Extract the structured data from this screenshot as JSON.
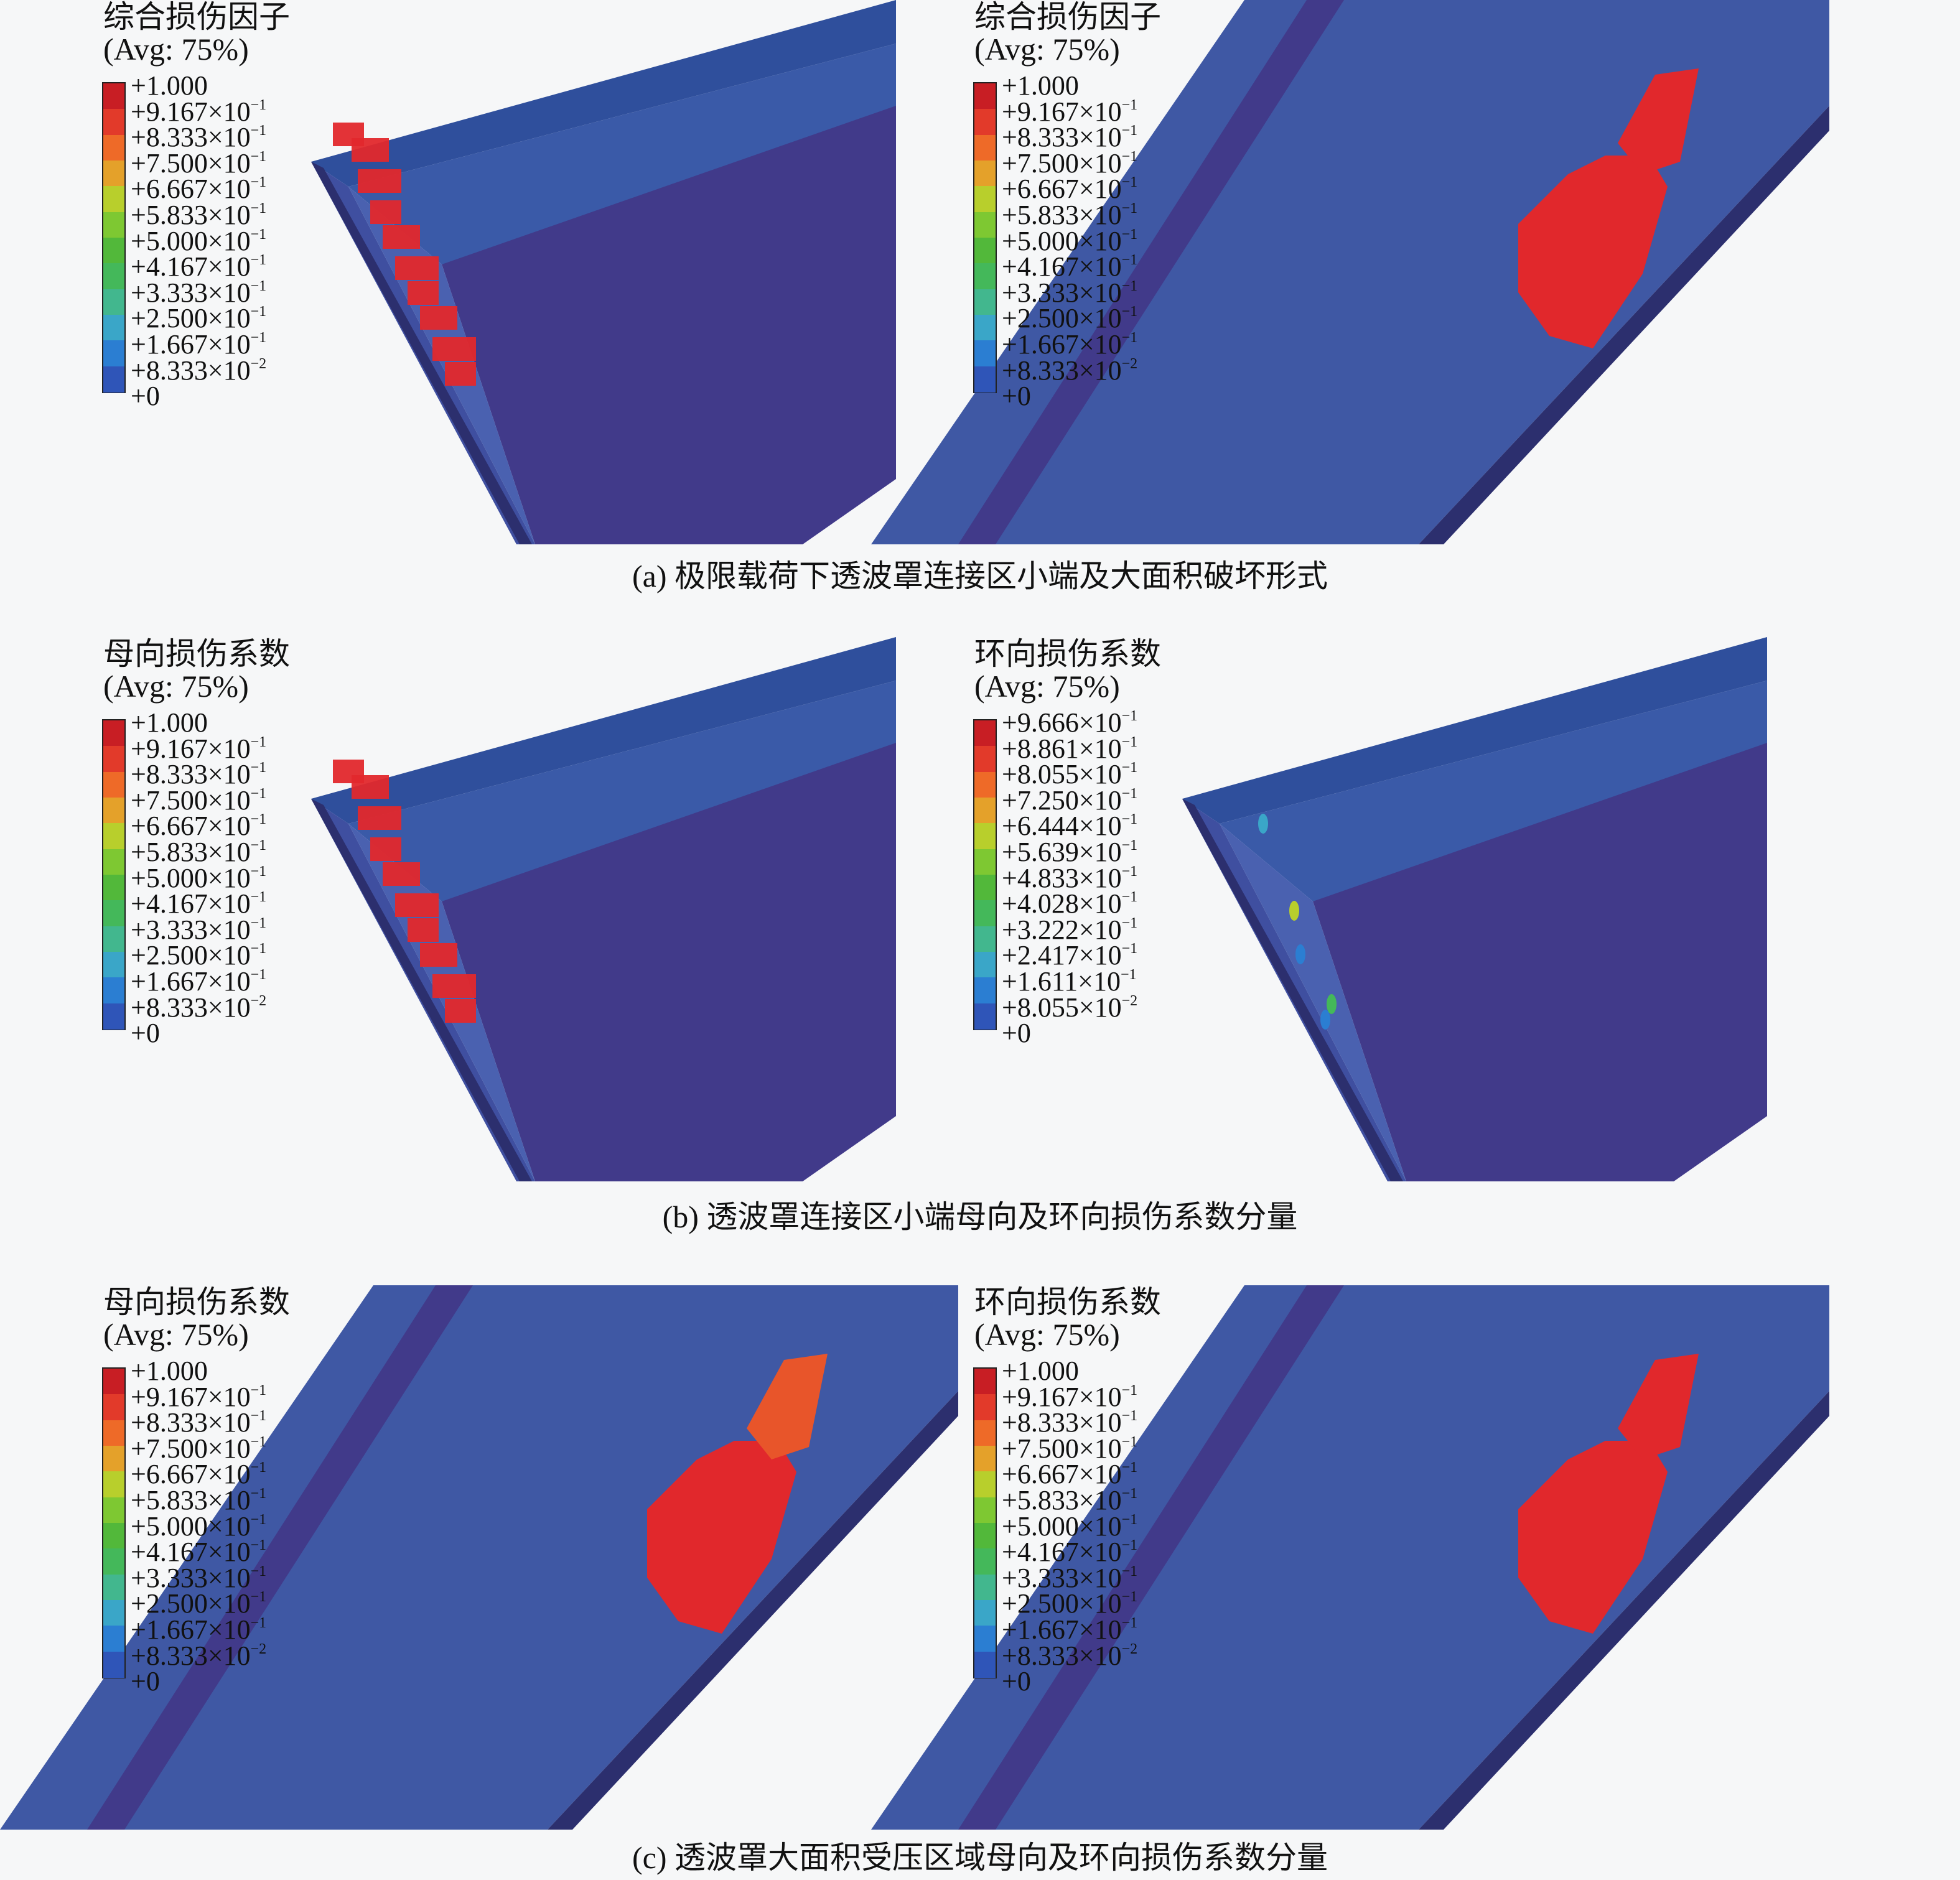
{
  "colorbar_colors": [
    "#3a3fa0",
    "#2f55b8",
    "#2b7ed2",
    "#3aa6c8",
    "#42b78e",
    "#44b85a",
    "#52b83a",
    "#7ec832",
    "#b8cf2c",
    "#e4a12a",
    "#ee6a28",
    "#e23a2a",
    "#c81e24"
  ],
  "surface_colors": {
    "background": "#f6f7f8",
    "panel_blue": "#3f58a4",
    "dark_purple": "#413a8a",
    "edge": "#2c2f6e",
    "damage_red": "#e1282c",
    "damage_orange": "#e8552a"
  },
  "legend_standard_ticks": [
    {
      "mant": "+1.000",
      "exp": ""
    },
    {
      "mant": "+9.167×10",
      "exp": "−1"
    },
    {
      "mant": "+8.333×10",
      "exp": "−1"
    },
    {
      "mant": "+7.500×10",
      "exp": "−1"
    },
    {
      "mant": "+6.667×10",
      "exp": "−1"
    },
    {
      "mant": "+5.833×10",
      "exp": "−1"
    },
    {
      "mant": "+5.000×10",
      "exp": "−1"
    },
    {
      "mant": "+4.167×10",
      "exp": "−1"
    },
    {
      "mant": "+3.333×10",
      "exp": "−1"
    },
    {
      "mant": "+2.500×10",
      "exp": "−1"
    },
    {
      "mant": "+1.667×10",
      "exp": "−1"
    },
    {
      "mant": "+8.333×10",
      "exp": "−2"
    },
    {
      "mant": "+0",
      "exp": ""
    }
  ],
  "legend_hoop_ticks": [
    {
      "mant": "+9.666×10",
      "exp": "−1"
    },
    {
      "mant": "+8.861×10",
      "exp": "−1"
    },
    {
      "mant": "+8.055×10",
      "exp": "−1"
    },
    {
      "mant": "+7.250×10",
      "exp": "−1"
    },
    {
      "mant": "+6.444×10",
      "exp": "−1"
    },
    {
      "mant": "+5.639×10",
      "exp": "−1"
    },
    {
      "mant": "+4.833×10",
      "exp": "−1"
    },
    {
      "mant": "+4.028×10",
      "exp": "−1"
    },
    {
      "mant": "+3.222×10",
      "exp": "−1"
    },
    {
      "mant": "+2.417×10",
      "exp": "−1"
    },
    {
      "mant": "+1.611×10",
      "exp": "−1"
    },
    {
      "mant": "+8.055×10",
      "exp": "−2"
    },
    {
      "mant": "+0",
      "exp": ""
    }
  ],
  "panels": [
    {
      "id": "a-left",
      "title": "综合损伤因子",
      "avg": "(Avg: 75%)",
      "ticks": "standard",
      "geometry": "corner",
      "damage": "crack-red"
    },
    {
      "id": "a-right",
      "title": "综合损伤因子",
      "avg": "(Avg: 75%)",
      "ticks": "standard",
      "geometry": "strip",
      "damage": "blob-red"
    },
    {
      "id": "b-left",
      "title": "母向损伤系数",
      "avg": "(Avg: 75%)",
      "ticks": "standard",
      "geometry": "corner",
      "damage": "crack-red"
    },
    {
      "id": "b-right",
      "title": "环向损伤系数",
      "avg": "(Avg: 75%)",
      "ticks": "hoop",
      "geometry": "corner",
      "damage": "specks"
    },
    {
      "id": "c-left",
      "title": "母向损伤系数",
      "avg": "(Avg: 75%)",
      "ticks": "standard",
      "geometry": "strip",
      "damage": "blob-mixed"
    },
    {
      "id": "c-right",
      "title": "环向损伤系数",
      "avg": "(Avg: 75%)",
      "ticks": "standard",
      "geometry": "strip",
      "damage": "blob-red"
    }
  ],
  "captions": {
    "a": "(a) 极限载荷下透波罩连接区小端及大面积破坏形式",
    "b": "(b) 透波罩连接区小端母向及环向损伤系数分量",
    "c": "(c) 透波罩大面积受压区域母向及环向损伤系数分量"
  }
}
